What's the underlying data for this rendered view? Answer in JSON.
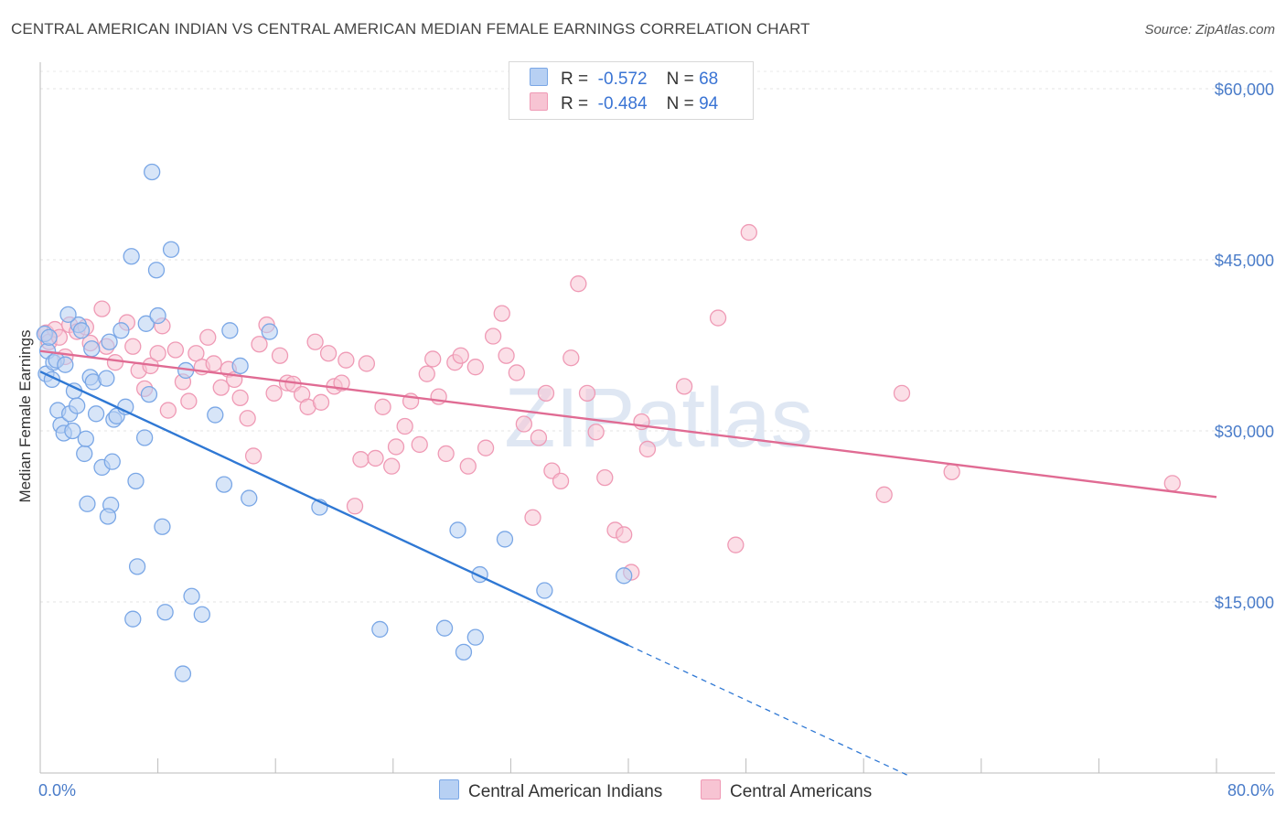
{
  "chart_data": {
    "type": "scatter",
    "title": "CENTRAL AMERICAN INDIAN VS CENTRAL AMERICAN MEDIAN FEMALE EARNINGS CORRELATION CHART",
    "source": "Source: ZipAtlas.com",
    "xlabel": "",
    "ylabel": "Median Female Earnings",
    "xlim": [
      0,
      80
    ],
    "ylim": [
      0,
      62000
    ],
    "x_tick_labels": [
      "0.0%",
      "80.0%"
    ],
    "y_ticks": [
      15000,
      30000,
      45000,
      60000
    ],
    "y_tick_labels": [
      "$15,000",
      "$30,000",
      "$45,000",
      "$60,000"
    ],
    "watermark": "ZIPatlas",
    "legend": {
      "rows": [
        {
          "r_label": "R =",
          "r_value": "-0.572",
          "n_label": "N =",
          "n_value": "68"
        },
        {
          "r_label": "R =",
          "r_value": "-0.484",
          "n_label": "N =",
          "n_value": "94"
        }
      ]
    },
    "series": [
      {
        "name": "Central American Indians",
        "color": "#7aa7e6",
        "fill": "#b7d0f3",
        "line_color": "#2f78d4",
        "trend": {
          "x0": 0,
          "y0": 35200,
          "x1": 40,
          "y1": 11200,
          "dash_to_x": 59
        },
        "points": [
          [
            0.3,
            38500
          ],
          [
            0.5,
            37000
          ],
          [
            0.4,
            35000
          ],
          [
            0.8,
            34500
          ],
          [
            0.9,
            36000
          ],
          [
            1.1,
            36200
          ],
          [
            1.2,
            31800
          ],
          [
            1.4,
            30500
          ],
          [
            1.6,
            29800
          ],
          [
            2.0,
            31500
          ],
          [
            2.3,
            33500
          ],
          [
            2.5,
            32200
          ],
          [
            2.6,
            39300
          ],
          [
            2.8,
            38800
          ],
          [
            3.0,
            28000
          ],
          [
            3.4,
            34700
          ],
          [
            3.6,
            34300
          ],
          [
            3.8,
            31500
          ],
          [
            3.5,
            37200
          ],
          [
            4.2,
            26800
          ],
          [
            4.5,
            34600
          ],
          [
            4.7,
            37800
          ],
          [
            4.9,
            27300
          ],
          [
            4.8,
            23500
          ],
          [
            5.0,
            31000
          ],
          [
            5.2,
            31300
          ],
          [
            5.5,
            38800
          ],
          [
            5.8,
            32100
          ],
          [
            4.6,
            22500
          ],
          [
            3.2,
            23600
          ],
          [
            6.2,
            45300
          ],
          [
            6.5,
            25600
          ],
          [
            6.6,
            18100
          ],
          [
            7.1,
            29400
          ],
          [
            7.4,
            33200
          ],
          [
            7.2,
            39400
          ],
          [
            7.6,
            52700
          ],
          [
            7.9,
            44100
          ],
          [
            8.0,
            40100
          ],
          [
            8.3,
            21600
          ],
          [
            8.5,
            14100
          ],
          [
            8.9,
            45900
          ],
          [
            9.7,
            8700
          ],
          [
            10.3,
            15500
          ],
          [
            11.0,
            13900
          ],
          [
            9.9,
            35300
          ],
          [
            11.9,
            31400
          ],
          [
            12.5,
            25300
          ],
          [
            12.9,
            38800
          ],
          [
            14.2,
            24100
          ],
          [
            13.6,
            35700
          ],
          [
            15.6,
            38700
          ],
          [
            19.0,
            23300
          ],
          [
            23.1,
            12600
          ],
          [
            27.5,
            12700
          ],
          [
            28.8,
            10600
          ],
          [
            28.4,
            21300
          ],
          [
            29.9,
            17400
          ],
          [
            29.6,
            11900
          ],
          [
            31.6,
            20500
          ],
          [
            34.3,
            16000
          ],
          [
            39.7,
            17300
          ],
          [
            6.3,
            13500
          ],
          [
            1.7,
            35800
          ],
          [
            2.2,
            30000
          ],
          [
            0.6,
            38200
          ],
          [
            1.9,
            40200
          ],
          [
            3.1,
            29300
          ]
        ]
      },
      {
        "name": "Central Americans",
        "color": "#ef9ab5",
        "fill": "#f7c4d3",
        "line_color": "#e06b93",
        "trend": {
          "x0": 0,
          "y0": 37000,
          "x1": 80,
          "y1": 24200
        },
        "points": [
          [
            0.4,
            38600
          ],
          [
            0.6,
            37800
          ],
          [
            1.0,
            38900
          ],
          [
            1.3,
            38200
          ],
          [
            1.7,
            36500
          ],
          [
            2.0,
            39300
          ],
          [
            2.5,
            38700
          ],
          [
            3.1,
            39100
          ],
          [
            3.4,
            37700
          ],
          [
            4.2,
            40700
          ],
          [
            4.5,
            37400
          ],
          [
            5.1,
            36000
          ],
          [
            5.9,
            39500
          ],
          [
            6.3,
            37400
          ],
          [
            6.7,
            35300
          ],
          [
            7.1,
            33700
          ],
          [
            7.5,
            35700
          ],
          [
            8.0,
            36800
          ],
          [
            8.3,
            39200
          ],
          [
            8.7,
            31800
          ],
          [
            9.2,
            37100
          ],
          [
            9.7,
            34300
          ],
          [
            10.1,
            32600
          ],
          [
            10.6,
            36800
          ],
          [
            11.0,
            35600
          ],
          [
            11.4,
            38200
          ],
          [
            11.8,
            35900
          ],
          [
            12.3,
            33800
          ],
          [
            12.8,
            35400
          ],
          [
            13.2,
            34500
          ],
          [
            13.6,
            32900
          ],
          [
            14.1,
            31100
          ],
          [
            14.5,
            27800
          ],
          [
            14.9,
            37600
          ],
          [
            15.4,
            39300
          ],
          [
            15.9,
            33300
          ],
          [
            16.3,
            36600
          ],
          [
            16.8,
            34200
          ],
          [
            17.2,
            34100
          ],
          [
            17.8,
            33200
          ],
          [
            18.2,
            32100
          ],
          [
            18.7,
            37800
          ],
          [
            19.1,
            32500
          ],
          [
            19.6,
            36800
          ],
          [
            20.0,
            33900
          ],
          [
            20.5,
            34200
          ],
          [
            20.8,
            36200
          ],
          [
            21.4,
            23400
          ],
          [
            21.8,
            27500
          ],
          [
            22.2,
            35900
          ],
          [
            22.8,
            27600
          ],
          [
            23.3,
            32100
          ],
          [
            23.9,
            26900
          ],
          [
            24.2,
            28600
          ],
          [
            24.8,
            30400
          ],
          [
            25.2,
            32600
          ],
          [
            25.8,
            28800
          ],
          [
            26.3,
            35000
          ],
          [
            26.7,
            36300
          ],
          [
            27.1,
            33000
          ],
          [
            27.6,
            28000
          ],
          [
            28.2,
            36000
          ],
          [
            28.6,
            36600
          ],
          [
            29.1,
            26900
          ],
          [
            29.6,
            35600
          ],
          [
            30.3,
            28500
          ],
          [
            30.8,
            38300
          ],
          [
            31.4,
            40300
          ],
          [
            31.7,
            36600
          ],
          [
            32.4,
            35100
          ],
          [
            32.9,
            30600
          ],
          [
            33.5,
            22400
          ],
          [
            33.9,
            29400
          ],
          [
            34.4,
            33300
          ],
          [
            34.8,
            26500
          ],
          [
            35.4,
            25600
          ],
          [
            36.1,
            36400
          ],
          [
            36.6,
            42900
          ],
          [
            37.2,
            33300
          ],
          [
            37.8,
            29900
          ],
          [
            38.4,
            25900
          ],
          [
            39.1,
            21300
          ],
          [
            39.7,
            20900
          ],
          [
            40.2,
            17600
          ],
          [
            40.9,
            30800
          ],
          [
            41.3,
            28400
          ],
          [
            43.8,
            33900
          ],
          [
            46.1,
            39900
          ],
          [
            47.3,
            20000
          ],
          [
            48.2,
            47400
          ],
          [
            57.4,
            24400
          ],
          [
            58.6,
            33300
          ],
          [
            62.0,
            26400
          ],
          [
            77.0,
            25400
          ]
        ]
      }
    ]
  }
}
